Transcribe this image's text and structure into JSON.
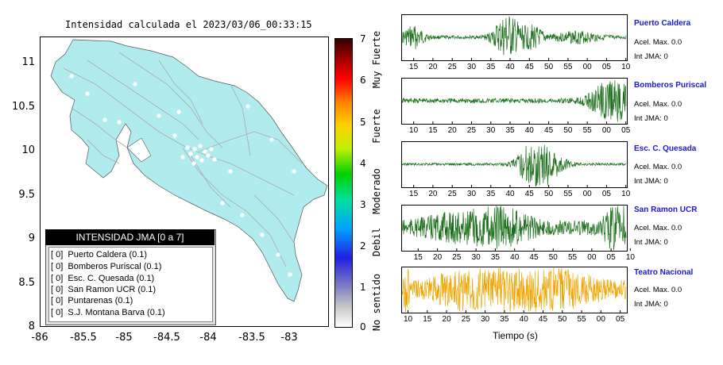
{
  "map": {
    "title": "Intensidad calculada el 2023/03/06_00:33:15",
    "y_ticks": [
      "11",
      "10.5",
      "10",
      "9.5",
      "9",
      "8.5",
      "8"
    ],
    "x_ticks": [
      "-86",
      "-85.5",
      "-85",
      "-84.5",
      "-84",
      "-83.5",
      "-83"
    ],
    "land_color": "#b0ecee",
    "road_color": "#aaaaaa",
    "legend": {
      "title": "INTENSIDAD JMA [0 a 7]",
      "items": [
        "[ 0]  Puerto Caldera (0.1)",
        "[ 0]  Bomberos Puriscal (0.1)",
        "[ 0]  Esc. C. Quesada (0.1)",
        "[ 0]  San Ramon UCR (0.1)",
        "[ 0]  Puntarenas (0.1)",
        "[ 0]  S.J. Montana Barva (0.1)"
      ]
    }
  },
  "colorbar": {
    "ticks": [
      "7",
      "6",
      "5",
      "4",
      "3",
      "2",
      "1",
      "0"
    ],
    "names": [
      "Muy Fuerte",
      "Fuerte",
      "Moderado",
      "Debil",
      "No sentido"
    ]
  },
  "chart_data": [
    {
      "type": "line",
      "title": "Puerto Caldera",
      "color": "#1a6e1a",
      "x_ticks": [
        "15",
        "20",
        "25",
        "30",
        "35",
        "40",
        "45",
        "50",
        "55",
        "00",
        "05",
        "10"
      ],
      "note": "seismogram waveform"
    },
    {
      "type": "line",
      "title": "Bomberos Puriscal",
      "color": "#1a6e1a",
      "x_ticks": [
        "10",
        "15",
        "20",
        "25",
        "30",
        "35",
        "40",
        "45",
        "50",
        "55",
        "00",
        "05"
      ]
    },
    {
      "type": "line",
      "title": "Esc. C. Quesada",
      "color": "#1a6e1a",
      "x_ticks": [
        "15",
        "20",
        "25",
        "30",
        "35",
        "40",
        "45",
        "50",
        "55",
        "00",
        "05",
        "10"
      ]
    },
    {
      "type": "line",
      "title": "San Ramon UCR",
      "color": "#1a6e1a",
      "x_ticks": [
        "15",
        "20",
        "25",
        "30",
        "35",
        "40",
        "45",
        "50",
        "55",
        "00",
        "05",
        "10"
      ]
    },
    {
      "type": "line",
      "title": "Teatro Nacional",
      "color": "#f0a500",
      "x_ticks": [
        "10",
        "15",
        "20",
        "25",
        "30",
        "35",
        "40",
        "45",
        "50",
        "55",
        "00",
        "05"
      ],
      "xlabel": "Tiempo (s)"
    }
  ],
  "stations": [
    {
      "name": "Puerto Caldera",
      "acel": "Acel. Max. 0.0",
      "int": "Int JMA: 0"
    },
    {
      "name": "Bomberos Puriscal",
      "acel": "Acel. Max. 0.0",
      "int": "Int JMA: 0"
    },
    {
      "name": "Esc. C. Quesada",
      "acel": "Acel. Max. 0.0",
      "int": "Int JMA: 0"
    },
    {
      "name": "San Ramon UCR",
      "acel": "Acel. Max. 0.0",
      "int": "Int JMA: 0"
    },
    {
      "name": "Teatro Nacional",
      "acel": "Acel. Max. 0.0",
      "int": "Int JMA: 0"
    }
  ],
  "xlabel": "Tiempo (s)"
}
